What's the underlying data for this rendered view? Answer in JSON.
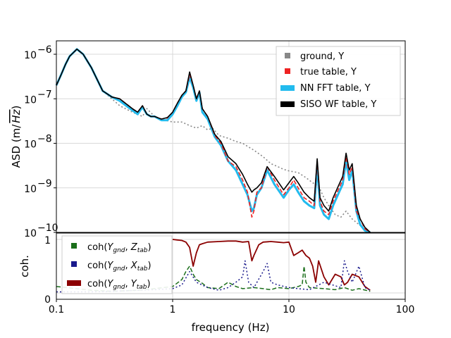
{
  "chart_data": [
    {
      "type": "line",
      "panel": "asd",
      "ylabel": "ASD (m/√Hz)",
      "ylabel_prefix": "ASD (m/",
      "ylabel_radicand": "Hz",
      "ylabel_suffix": ")",
      "xscale": "log",
      "yscale": "log",
      "xlim": [
        0.1,
        100
      ],
      "ylim": [
        1e-10,
        2e-06
      ],
      "yticks": [
        {
          "value": 1e-10,
          "base": "10",
          "exp": "−10"
        },
        {
          "value": 1e-09,
          "base": "10",
          "exp": "−9"
        },
        {
          "value": 1e-08,
          "base": "10",
          "exp": "−8"
        },
        {
          "value": 1e-07,
          "base": "10",
          "exp": "−7"
        },
        {
          "value": 1e-06,
          "base": "10",
          "exp": "−6"
        }
      ],
      "grid": true,
      "legend_position": "top-right",
      "series": [
        {
          "name": "ground, Y",
          "color": "#888888",
          "style": "dotted",
          "x": [
            0.1,
            0.11,
            0.12,
            0.13,
            0.15,
            0.17,
            0.2,
            0.25,
            0.3,
            0.35,
            0.45,
            0.55,
            0.6,
            0.7,
            0.8,
            1.0,
            1.2,
            1.4,
            1.6,
            1.8,
            2.0,
            2.2,
            2.5,
            3.0,
            3.5,
            4.0,
            5.0,
            6.0,
            7.0,
            8.0,
            9.0,
            10.0,
            12.0,
            14.0,
            16.0,
            17.0,
            18.0,
            20.0,
            22.0,
            25.0,
            28.0,
            31.0,
            35.0,
            40.0,
            45.0,
            50.0
          ],
          "values": [
            2e-07,
            3.5e-07,
            6e-07,
            9e-07,
            1.3e-06,
            1e-06,
            5e-07,
            1.5e-07,
            1e-07,
            7e-08,
            5e-08,
            4e-08,
            6e-08,
            4e-08,
            3.5e-08,
            3e-08,
            3e-08,
            2.5e-08,
            2.2e-08,
            2.5e-08,
            2e-08,
            2.2e-08,
            1.5e-08,
            1.3e-08,
            1.1e-08,
            1e-08,
            7e-09,
            5e-09,
            3.5e-09,
            3e-09,
            2.6e-09,
            2.4e-09,
            2.2e-09,
            1.7e-09,
            1.3e-09,
            1.2e-09,
            1.1e-09,
            6e-10,
            4e-10,
            2.5e-10,
            2.2e-10,
            3e-10,
            2e-10,
            1.5e-10,
            1.2e-10,
            1e-10
          ]
        },
        {
          "name": "true table, Y",
          "color": "#ee2222",
          "style": "dashed",
          "x": [
            0.1,
            0.11,
            0.12,
            0.13,
            0.15,
            0.17,
            0.2,
            0.25,
            0.3,
            0.35,
            0.45,
            0.5,
            0.55,
            0.6,
            0.65,
            0.7,
            0.8,
            0.9,
            1.0,
            1.1,
            1.2,
            1.3,
            1.4,
            1.5,
            1.6,
            1.7,
            1.8,
            2.0,
            2.3,
            2.6,
            3.0,
            3.5,
            4.0,
            4.4,
            4.8,
            5.0,
            5.3,
            5.8,
            6.5,
            7.5,
            9.0,
            10.0,
            11.0,
            12.0,
            13.5,
            15.0,
            16.5,
            17.5,
            18.5,
            20.0,
            22.0,
            24.0,
            27.0,
            29.0,
            31.0,
            33.0,
            35.0,
            38.0,
            41.0,
            45.0,
            50.0
          ],
          "values": [
            2e-07,
            3.5e-07,
            6e-07,
            9e-07,
            1.3e-06,
            1e-06,
            5e-07,
            1.5e-07,
            1.1e-07,
            1e-07,
            6e-08,
            5e-08,
            7e-08,
            4.5e-08,
            4e-08,
            4e-08,
            3.5e-08,
            3.7e-08,
            5e-08,
            8e-08,
            1.2e-07,
            1.5e-07,
            3.5e-07,
            2e-07,
            1e-07,
            1.5e-07,
            6e-08,
            4e-08,
            1.5e-08,
            1e-08,
            4e-09,
            3e-09,
            1.5e-09,
            8e-10,
            2.2e-10,
            3e-10,
            8e-10,
            1e-09,
            3e-09,
            1.5e-09,
            7e-10,
            1e-09,
            1.5e-09,
            1e-09,
            6e-10,
            5e-10,
            4e-10,
            4e-09,
            5e-10,
            3e-10,
            2.5e-10,
            5e-10,
            1e-09,
            1.5e-09,
            5e-09,
            2e-09,
            3e-09,
            3e-10,
            2e-10,
            1.2e-10,
            1e-10
          ]
        },
        {
          "name": "NN FFT table, Y",
          "color": "#22bbee",
          "style": "solid",
          "x": [
            0.1,
            0.11,
            0.12,
            0.13,
            0.15,
            0.17,
            0.2,
            0.25,
            0.3,
            0.35,
            0.45,
            0.5,
            0.55,
            0.6,
            0.65,
            0.7,
            0.8,
            0.9,
            1.0,
            1.1,
            1.2,
            1.3,
            1.4,
            1.5,
            1.6,
            1.7,
            1.8,
            2.0,
            2.3,
            2.6,
            3.0,
            3.5,
            4.0,
            4.4,
            4.8,
            5.0,
            5.3,
            5.8,
            6.5,
            7.5,
            9.0,
            10.0,
            11.0,
            12.0,
            13.5,
            15.0,
            16.5,
            17.5,
            18.5,
            20.0,
            22.0,
            24.0,
            27.0,
            29.0,
            31.0,
            33.0,
            35.0,
            38.0,
            41.0,
            45.0,
            50.0
          ],
          "values": [
            2e-07,
            3.5e-07,
            6e-07,
            9e-07,
            1.3e-06,
            1e-06,
            5e-07,
            1.5e-07,
            1.1e-07,
            9e-08,
            5.5e-08,
            4.5e-08,
            6.5e-08,
            4.5e-08,
            4e-08,
            4e-08,
            3.3e-08,
            3.3e-08,
            4.5e-08,
            7e-08,
            1.1e-07,
            1.4e-07,
            3e-07,
            1.8e-07,
            9e-08,
            1.4e-07,
            5e-08,
            3.5e-08,
            1.4e-08,
            9e-09,
            4e-09,
            2.5e-09,
            1.2e-09,
            7e-10,
            3e-10,
            3.5e-10,
            7e-10,
            1e-09,
            2.5e-09,
            1.2e-09,
            6e-10,
            9e-10,
            1.2e-09,
            8e-10,
            5e-10,
            4e-10,
            3.5e-10,
            3e-09,
            4e-10,
            2.5e-10,
            2e-10,
            4e-10,
            8e-10,
            1.2e-09,
            4e-09,
            1.5e-09,
            2.5e-09,
            3e-10,
            1.5e-10,
            1.1e-10,
            1e-10
          ]
        },
        {
          "name": "SISO WF table, Y",
          "color": "#000000",
          "style": "solid",
          "x": [
            0.1,
            0.11,
            0.12,
            0.13,
            0.15,
            0.17,
            0.2,
            0.25,
            0.3,
            0.35,
            0.45,
            0.5,
            0.55,
            0.6,
            0.65,
            0.7,
            0.8,
            0.9,
            1.0,
            1.1,
            1.2,
            1.3,
            1.4,
            1.5,
            1.6,
            1.7,
            1.8,
            2.0,
            2.3,
            2.6,
            3.0,
            3.5,
            4.0,
            4.4,
            4.8,
            5.0,
            5.3,
            5.8,
            6.5,
            7.5,
            9.0,
            10.0,
            11.0,
            12.0,
            13.5,
            15.0,
            16.5,
            17.5,
            18.5,
            20.0,
            22.0,
            24.0,
            27.0,
            29.0,
            31.0,
            33.0,
            35.0,
            38.0,
            41.0,
            45.0,
            50.0
          ],
          "values": [
            2e-07,
            3.5e-07,
            6e-07,
            9e-07,
            1.3e-06,
            1e-06,
            5e-07,
            1.5e-07,
            1.1e-07,
            1e-07,
            6e-08,
            5e-08,
            7e-08,
            4.5e-08,
            4e-08,
            4e-08,
            3.5e-08,
            3.8e-08,
            5e-08,
            8e-08,
            1.2e-07,
            1.5e-07,
            4e-07,
            2e-07,
            1e-07,
            1.5e-07,
            6e-08,
            4e-08,
            1.6e-08,
            1.1e-08,
            5e-09,
            3.5e-09,
            2e-09,
            1.2e-09,
            8e-10,
            9e-10,
            1e-09,
            1.3e-09,
            3e-09,
            1.8e-09,
            9e-10,
            1.3e-09,
            1.8e-09,
            1.3e-09,
            8e-10,
            6e-10,
            5e-10,
            4.5e-09,
            6e-10,
            4e-10,
            3e-10,
            6e-10,
            1.2e-09,
            1.8e-09,
            6e-09,
            2.5e-09,
            3.5e-09,
            4e-10,
            2e-10,
            1.3e-10,
            1e-10
          ]
        }
      ]
    },
    {
      "type": "line",
      "panel": "coherence",
      "ylabel": "coh.",
      "xlabel": "frequency (Hz)",
      "xscale": "log",
      "ylim": [
        0,
        1
      ],
      "yticks": [
        "0",
        "1"
      ],
      "xticks": [
        {
          "value": 0.1,
          "label": "0.1"
        },
        {
          "value": 1,
          "label": "1"
        },
        {
          "value": 10,
          "label": "10"
        },
        {
          "value": 100,
          "label": "100"
        }
      ],
      "grid": true,
      "legend_position": "left",
      "series": [
        {
          "name": "coh(Y_gnd, Z_tab)",
          "legend_a": "coh(",
          "legend_b": "Y",
          "legend_b_sub": "gnd",
          "legend_c": ", ",
          "legend_d": "Z",
          "legend_d_sub": "tab",
          "legend_e": ")",
          "color": "#1a6e1a",
          "style": "dashed",
          "x": [
            0.1,
            0.2,
            0.3,
            0.5,
            0.7,
            1.0,
            1.2,
            1.3,
            1.4,
            1.5,
            1.6,
            1.8,
            2.0,
            2.5,
            3.0,
            3.5,
            4.0,
            5.0,
            6.0,
            7.0,
            8.0,
            10.0,
            12.0,
            13.0,
            13.5,
            14.0,
            15.0,
            20.0,
            25.0,
            30.0,
            35.0,
            40.0,
            50.0
          ],
          "values": [
            0.12,
            0.05,
            0.03,
            0.05,
            0.08,
            0.12,
            0.25,
            0.4,
            0.5,
            0.35,
            0.25,
            0.18,
            0.1,
            0.08,
            0.2,
            0.12,
            0.08,
            0.1,
            0.08,
            0.06,
            0.1,
            0.08,
            0.12,
            0.15,
            0.5,
            0.2,
            0.1,
            0.08,
            0.06,
            0.1,
            0.05,
            0.08,
            0.03
          ]
        },
        {
          "name": "coh(Y_gnd, X_tab)",
          "legend_a": "coh(",
          "legend_b": "Y",
          "legend_b_sub": "gnd",
          "legend_c": ", ",
          "legend_d": "X",
          "legend_d_sub": "tab",
          "legend_e": ")",
          "color": "#1a1a8c",
          "style": "dotted",
          "x": [
            0.1,
            0.2,
            0.3,
            0.5,
            0.7,
            1.0,
            1.2,
            1.4,
            1.6,
            2.0,
            2.5,
            3.0,
            3.5,
            4.0,
            4.2,
            4.5,
            5.0,
            6.0,
            6.5,
            7.0,
            8.0,
            10.0,
            12.0,
            15.0,
            20.0,
            28.0,
            30.0,
            32.0,
            35.0,
            40.0,
            45.0,
            50.0
          ],
          "values": [
            0.02,
            0.02,
            0.03,
            0.05,
            0.06,
            0.08,
            0.15,
            0.4,
            0.2,
            0.1,
            0.05,
            0.1,
            0.2,
            0.3,
            0.6,
            0.2,
            0.1,
            0.4,
            0.55,
            0.2,
            0.15,
            0.1,
            0.08,
            0.06,
            0.2,
            0.1,
            0.6,
            0.4,
            0.2,
            0.5,
            0.1,
            0.05
          ]
        },
        {
          "name": "coh(Y_gnd, Y_tab)",
          "legend_a": "coh(",
          "legend_b": "Y",
          "legend_b_sub": "gnd",
          "legend_c": ", ",
          "legend_d": "Y",
          "legend_d_sub": "tab",
          "legend_e": ")",
          "color": "#8b0000",
          "style": "solid",
          "x": [
            1.0,
            1.1,
            1.2,
            1.3,
            1.4,
            1.5,
            1.6,
            1.7,
            1.8,
            2.0,
            2.5,
            3.0,
            3.5,
            4.0,
            4.5,
            4.8,
            5.0,
            5.5,
            6.0,
            7.0,
            8.0,
            9.0,
            10.0,
            11.0,
            12.0,
            13.0,
            14.0,
            15.0,
            16.0,
            17.0,
            18.0,
            20.0,
            22.0,
            25.0,
            28.0,
            30.0,
            32.0,
            35.0,
            40.0,
            45.0,
            50.0
          ],
          "values": [
            1.0,
            0.99,
            0.98,
            0.95,
            0.85,
            0.5,
            0.75,
            0.9,
            0.92,
            0.95,
            0.96,
            0.97,
            0.97,
            0.95,
            0.96,
            0.6,
            0.7,
            0.9,
            0.95,
            0.96,
            0.95,
            0.94,
            0.95,
            0.7,
            0.75,
            0.8,
            0.7,
            0.65,
            0.5,
            0.2,
            0.6,
            0.3,
            0.15,
            0.35,
            0.3,
            0.15,
            0.2,
            0.35,
            0.3,
            0.12,
            0.05
          ]
        }
      ]
    }
  ]
}
